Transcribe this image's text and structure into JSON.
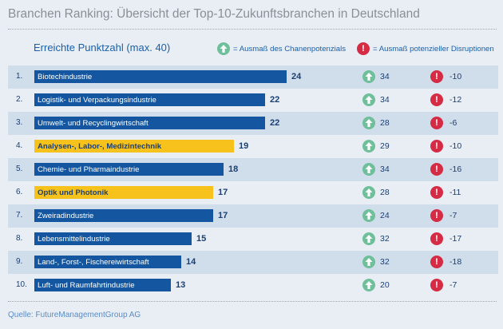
{
  "title": "Branchen Ranking: Übersicht der Top-10-Zukunftsbranchen in Deutschland",
  "score_header": "Erreichte Punktzahl (max. 40)",
  "legend": {
    "potential": "= Ausmaß des Chanenpotenzials",
    "disruption": "= Ausmaß potenzieller Disruptionen"
  },
  "colors": {
    "bar_blue": "#1457a0",
    "bar_yellow": "#f6c21b",
    "potential_icon": "#6fbf9b",
    "disruption_icon": "#d52b44"
  },
  "source": "Quelle: FutureManagementGroup AG",
  "chart_data": {
    "type": "bar",
    "orientation": "horizontal",
    "max_score": 40,
    "rows": [
      {
        "rank": "1.",
        "name": "Biotechindustrie",
        "score": 24,
        "potential": 34,
        "disruption": -10,
        "highlight": false
      },
      {
        "rank": "2.",
        "name": "Logistik- und Verpackungsindustrie",
        "score": 22,
        "potential": 34,
        "disruption": -12,
        "highlight": false
      },
      {
        "rank": "3.",
        "name": "Umwelt- und Recyclingwirtschaft",
        "score": 22,
        "potential": 28,
        "disruption": -6,
        "highlight": false
      },
      {
        "rank": "4.",
        "name": "Analysen-, Labor-, Medizintechnik",
        "score": 19,
        "potential": 29,
        "disruption": -10,
        "highlight": true
      },
      {
        "rank": "5.",
        "name": "Chemie- und Pharmaindustrie",
        "score": 18,
        "potential": 34,
        "disruption": -16,
        "highlight": false
      },
      {
        "rank": "6.",
        "name": "Optik und Photonik",
        "score": 17,
        "potential": 28,
        "disruption": -11,
        "highlight": true
      },
      {
        "rank": "7.",
        "name": "Zweiradindustrie",
        "score": 17,
        "potential": 24,
        "disruption": -7,
        "highlight": false
      },
      {
        "rank": "8.",
        "name": "Lebensmittelindustrie",
        "score": 15,
        "potential": 32,
        "disruption": -17,
        "highlight": false
      },
      {
        "rank": "9.",
        "name": "Land-, Forst-, Fischereiwirtschaft",
        "score": 14,
        "potential": 32,
        "disruption": -18,
        "highlight": false
      },
      {
        "rank": "10.",
        "name": "Luft- und Raumfahrtindustrie",
        "score": 13,
        "potential": 20,
        "disruption": -7,
        "highlight": false
      }
    ]
  }
}
